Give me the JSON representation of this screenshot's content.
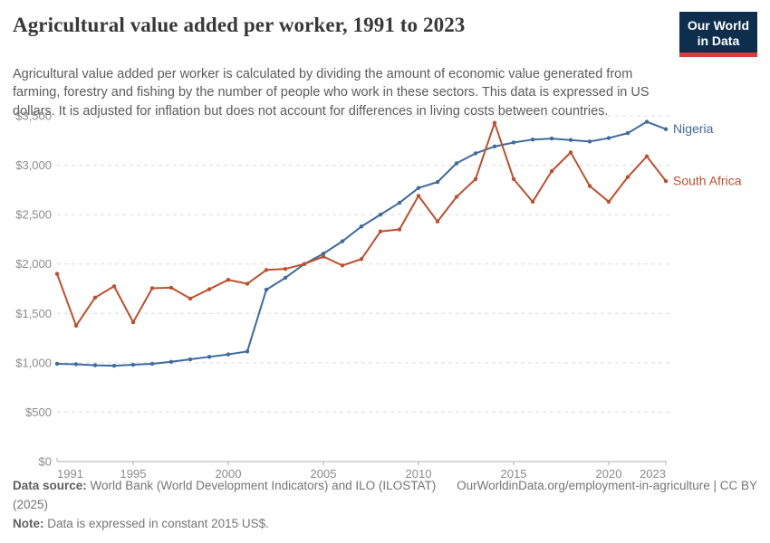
{
  "header": {
    "title": "Agricultural value added per worker, 1991 to 2023",
    "subtitle": "Agricultural value added per worker is calculated by dividing the amount of economic value generated from farming, forestry and fishing by the number of people who work in these sectors. This data is expressed in US dollars. It is adjusted for inflation but does not account for differences in living costs between countries.",
    "logo": {
      "line1": "Our World",
      "line2": "in Data",
      "bg_color": "#0d2e4d",
      "accent_color": "#d93a3a"
    }
  },
  "chart_data": {
    "type": "line",
    "title": "Agricultural value added per worker, 1991 to 2023",
    "xlabel": "",
    "ylabel": "",
    "ylim": [
      0,
      3500
    ],
    "ytick_step": 500,
    "ytick_prefix": "$",
    "xticks": [
      1991,
      1995,
      2000,
      2005,
      2010,
      2015,
      2020,
      2023
    ],
    "grid": "horizontal-dashed",
    "legend_position": "end-of-line-labels",
    "x": [
      1991,
      1992,
      1993,
      1994,
      1995,
      1996,
      1997,
      1998,
      1999,
      2000,
      2001,
      2002,
      2003,
      2004,
      2005,
      2006,
      2007,
      2008,
      2009,
      2010,
      2011,
      2012,
      2013,
      2014,
      2015,
      2016,
      2017,
      2018,
      2019,
      2020,
      2021,
      2022,
      2023
    ],
    "series": [
      {
        "name": "Nigeria",
        "color": "#3f6a9d",
        "values": [
          990,
          985,
          975,
          970,
          980,
          990,
          1010,
          1035,
          1060,
          1085,
          1115,
          1740,
          1860,
          2000,
          2105,
          2230,
          2380,
          2500,
          2620,
          2770,
          2830,
          3020,
          3120,
          3190,
          3230,
          3260,
          3270,
          3255,
          3240,
          3275,
          3325,
          3440,
          3365
        ]
      },
      {
        "name": "South Africa",
        "color": "#be4f2e",
        "values": [
          1900,
          1375,
          1660,
          1775,
          1410,
          1755,
          1760,
          1650,
          1745,
          1840,
          1800,
          1940,
          1950,
          2000,
          2075,
          1985,
          2050,
          2330,
          2350,
          2690,
          2430,
          2680,
          2860,
          3430,
          2860,
          2630,
          2940,
          3130,
          2790,
          2630,
          2880,
          3090,
          2840
        ]
      }
    ],
    "axis_color": "#afafaf",
    "gridline_color": "#dcdcdc",
    "tick_label_color": "#8b8b8b"
  },
  "footer": {
    "source_label": "Data source:",
    "source_text": "World Bank (World Development Indicators) and ILO (ILOSTAT) (2025)",
    "permalink": "OurWorldinData.org/employment-in-agriculture | CC BY",
    "note_label": "Note:",
    "note_text": "Data is expressed in constant 2015 US$."
  }
}
